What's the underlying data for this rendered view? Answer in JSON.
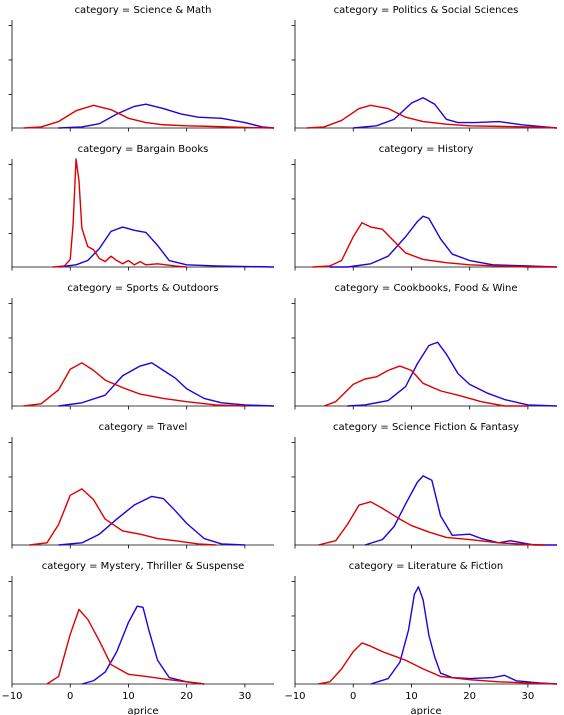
{
  "chart_data": {
    "type": "line",
    "xlabel": "aprice",
    "xlim": [
      -10,
      35
    ],
    "xticks": [
      -10,
      0,
      10,
      20,
      30
    ],
    "ylim": [
      0,
      1
    ],
    "colors": {
      "red": "#dd0000",
      "blue": "#2200dd"
    },
    "facet_prefix": "category = ",
    "facets": [
      {
        "category": "Science & Math",
        "red": [
          [
            -8,
            0
          ],
          [
            -5,
            0.01
          ],
          [
            -2,
            0.06
          ],
          [
            1,
            0.16
          ],
          [
            4,
            0.21
          ],
          [
            7,
            0.17
          ],
          [
            10,
            0.09
          ],
          [
            13,
            0.05
          ],
          [
            16,
            0.03
          ],
          [
            20,
            0.02
          ],
          [
            24,
            0.015
          ],
          [
            30,
            0.005
          ],
          [
            35,
            0
          ]
        ],
        "blue": [
          [
            -2,
            0
          ],
          [
            2,
            0.01
          ],
          [
            5,
            0.04
          ],
          [
            8,
            0.13
          ],
          [
            11,
            0.2
          ],
          [
            13,
            0.22
          ],
          [
            16,
            0.18
          ],
          [
            19,
            0.13
          ],
          [
            22,
            0.1
          ],
          [
            26,
            0.09
          ],
          [
            30,
            0.05
          ],
          [
            33,
            0.01
          ],
          [
            35,
            0
          ]
        ]
      },
      {
        "category": "Politics & Social Sciences",
        "red": [
          [
            -8,
            0
          ],
          [
            -5,
            0.01
          ],
          [
            -2,
            0.07
          ],
          [
            1,
            0.18
          ],
          [
            3,
            0.21
          ],
          [
            6,
            0.18
          ],
          [
            9,
            0.1
          ],
          [
            12,
            0.06
          ],
          [
            16,
            0.035
          ],
          [
            20,
            0.02
          ],
          [
            25,
            0.015
          ],
          [
            30,
            0.01
          ],
          [
            35,
            0
          ]
        ],
        "blue": [
          [
            0,
            0
          ],
          [
            4,
            0.02
          ],
          [
            7,
            0.08
          ],
          [
            10,
            0.23
          ],
          [
            12,
            0.28
          ],
          [
            14,
            0.22
          ],
          [
            16,
            0.08
          ],
          [
            18,
            0.05
          ],
          [
            21,
            0.05
          ],
          [
            25,
            0.06
          ],
          [
            29,
            0.03
          ],
          [
            33,
            0.01
          ],
          [
            35,
            0
          ]
        ]
      },
      {
        "category": "Bargain Books",
        "red": [
          [
            -3,
            0
          ],
          [
            -1,
            0.01
          ],
          [
            0,
            0.07
          ],
          [
            0.5,
            0.4
          ],
          [
            1,
            1.0
          ],
          [
            1.5,
            0.8
          ],
          [
            2,
            0.36
          ],
          [
            3,
            0.19
          ],
          [
            4,
            0.16
          ],
          [
            5,
            0.08
          ],
          [
            6,
            0.05
          ],
          [
            7,
            0.1
          ],
          [
            8,
            0.06
          ],
          [
            9,
            0.03
          ],
          [
            10,
            0.06
          ],
          [
            11,
            0.02
          ],
          [
            12,
            0.05
          ],
          [
            13,
            0.02
          ],
          [
            15,
            0.03
          ],
          [
            18,
            0.01
          ],
          [
            20,
            0
          ]
        ],
        "blue": [
          [
            -2,
            0
          ],
          [
            1,
            0.02
          ],
          [
            3,
            0.06
          ],
          [
            5,
            0.17
          ],
          [
            7,
            0.33
          ],
          [
            9,
            0.37
          ],
          [
            11,
            0.34
          ],
          [
            13,
            0.32
          ],
          [
            15,
            0.2
          ],
          [
            17,
            0.06
          ],
          [
            20,
            0.02
          ],
          [
            25,
            0.01
          ],
          [
            35,
            0
          ]
        ]
      },
      {
        "category": "History",
        "red": [
          [
            -7,
            0
          ],
          [
            -4,
            0.01
          ],
          [
            -2,
            0.06
          ],
          [
            0,
            0.28
          ],
          [
            1.5,
            0.41
          ],
          [
            3,
            0.37
          ],
          [
            5,
            0.35
          ],
          [
            7,
            0.24
          ],
          [
            9,
            0.13
          ],
          [
            12,
            0.07
          ],
          [
            16,
            0.04
          ],
          [
            20,
            0.02
          ],
          [
            25,
            0.01
          ],
          [
            30,
            0
          ],
          [
            35,
            0
          ]
        ],
        "blue": [
          [
            -4,
            0
          ],
          [
            -1,
            0
          ],
          [
            3,
            0.03
          ],
          [
            6,
            0.1
          ],
          [
            9,
            0.28
          ],
          [
            11,
            0.42
          ],
          [
            12,
            0.47
          ],
          [
            13,
            0.45
          ],
          [
            15,
            0.26
          ],
          [
            17,
            0.12
          ],
          [
            20,
            0.06
          ],
          [
            24,
            0.02
          ],
          [
            30,
            0.01
          ],
          [
            35,
            0
          ]
        ]
      },
      {
        "category": "Sports & Outdoors",
        "red": [
          [
            -8,
            0
          ],
          [
            -5,
            0.02
          ],
          [
            -2,
            0.15
          ],
          [
            0,
            0.34
          ],
          [
            2,
            0.4
          ],
          [
            4,
            0.33
          ],
          [
            6,
            0.24
          ],
          [
            9,
            0.17
          ],
          [
            12,
            0.11
          ],
          [
            16,
            0.07
          ],
          [
            20,
            0.04
          ],
          [
            25,
            0.01
          ],
          [
            30,
            0
          ]
        ],
        "blue": [
          [
            -2,
            0
          ],
          [
            2,
            0.03
          ],
          [
            6,
            0.1
          ],
          [
            9,
            0.28
          ],
          [
            12,
            0.37
          ],
          [
            14,
            0.4
          ],
          [
            16,
            0.33
          ],
          [
            18,
            0.26
          ],
          [
            20,
            0.16
          ],
          [
            23,
            0.07
          ],
          [
            26,
            0.03
          ],
          [
            30,
            0.01
          ],
          [
            35,
            0
          ]
        ]
      },
      {
        "category": "Cookbooks, Food & Wine",
        "red": [
          [
            -5,
            0
          ],
          [
            -3,
            0.04
          ],
          [
            0,
            0.2
          ],
          [
            2,
            0.25
          ],
          [
            4,
            0.27
          ],
          [
            6,
            0.33
          ],
          [
            8,
            0.37
          ],
          [
            10,
            0.33
          ],
          [
            12,
            0.21
          ],
          [
            15,
            0.14
          ],
          [
            18,
            0.1
          ],
          [
            22,
            0.04
          ],
          [
            26,
            0
          ],
          [
            30,
            0
          ]
        ],
        "blue": [
          [
            -1,
            0
          ],
          [
            2,
            0.01
          ],
          [
            6,
            0.05
          ],
          [
            9,
            0.18
          ],
          [
            11,
            0.39
          ],
          [
            13,
            0.56
          ],
          [
            14.5,
            0.59
          ],
          [
            16,
            0.48
          ],
          [
            18,
            0.3
          ],
          [
            20,
            0.2
          ],
          [
            23,
            0.12
          ],
          [
            26,
            0.06
          ],
          [
            30,
            0.01
          ],
          [
            35,
            0
          ]
        ]
      },
      {
        "category": "Travel",
        "red": [
          [
            -7,
            0
          ],
          [
            -4,
            0.02
          ],
          [
            -2,
            0.19
          ],
          [
            0,
            0.46
          ],
          [
            2,
            0.52
          ],
          [
            4,
            0.42
          ],
          [
            6,
            0.24
          ],
          [
            9,
            0.13
          ],
          [
            12,
            0.1
          ],
          [
            15,
            0.06
          ],
          [
            18,
            0.04
          ],
          [
            22,
            0.01
          ],
          [
            25,
            0
          ]
        ],
        "blue": [
          [
            -2,
            0
          ],
          [
            2,
            0.02
          ],
          [
            5,
            0.1
          ],
          [
            8,
            0.24
          ],
          [
            11,
            0.37
          ],
          [
            14,
            0.45
          ],
          [
            16,
            0.43
          ],
          [
            18,
            0.32
          ],
          [
            20,
            0.2
          ],
          [
            23,
            0.06
          ],
          [
            26,
            0.01
          ],
          [
            30,
            0
          ]
        ]
      },
      {
        "category": "Science Fiction & Fantasy",
        "red": [
          [
            -6,
            0
          ],
          [
            -3,
            0.04
          ],
          [
            -1,
            0.19
          ],
          [
            1,
            0.37
          ],
          [
            3,
            0.4
          ],
          [
            5,
            0.34
          ],
          [
            8,
            0.24
          ],
          [
            10,
            0.18
          ],
          [
            13,
            0.12
          ],
          [
            16,
            0.07
          ],
          [
            20,
            0.05
          ],
          [
            25,
            0.02
          ],
          [
            30,
            0.005
          ],
          [
            33,
            0
          ]
        ],
        "blue": [
          [
            2,
            0
          ],
          [
            5,
            0.05
          ],
          [
            7,
            0.17
          ],
          [
            9,
            0.38
          ],
          [
            11,
            0.58
          ],
          [
            12,
            0.64
          ],
          [
            13.5,
            0.6
          ],
          [
            15,
            0.27
          ],
          [
            17,
            0.09
          ],
          [
            20,
            0.1
          ],
          [
            22,
            0.06
          ],
          [
            25,
            0.02
          ],
          [
            27,
            0.04
          ],
          [
            29,
            0.02
          ],
          [
            31,
            0
          ],
          [
            35,
            0
          ]
        ]
      },
      {
        "category": "Mystery, Thriller & Suspense",
        "red": [
          [
            -4,
            0
          ],
          [
            -2,
            0.07
          ],
          [
            0,
            0.46
          ],
          [
            1.5,
            0.69
          ],
          [
            3,
            0.6
          ],
          [
            5,
            0.4
          ],
          [
            7,
            0.18
          ],
          [
            10,
            0.09
          ],
          [
            13,
            0.07
          ],
          [
            17,
            0.04
          ],
          [
            20,
            0.02
          ],
          [
            23,
            0
          ]
        ],
        "blue": [
          [
            2,
            0
          ],
          [
            4,
            0.03
          ],
          [
            6,
            0.11
          ],
          [
            8,
            0.3
          ],
          [
            10,
            0.57
          ],
          [
            11.5,
            0.72
          ],
          [
            12.5,
            0.71
          ],
          [
            13.5,
            0.5
          ],
          [
            15,
            0.22
          ],
          [
            17,
            0.06
          ],
          [
            20,
            0.02
          ],
          [
            23,
            0
          ]
        ]
      },
      {
        "category": "Literature & Fiction",
        "red": [
          [
            -6,
            0
          ],
          [
            -4,
            0.02
          ],
          [
            -2,
            0.14
          ],
          [
            0,
            0.3
          ],
          [
            1.5,
            0.38
          ],
          [
            3,
            0.35
          ],
          [
            5,
            0.3
          ],
          [
            7,
            0.26
          ],
          [
            9,
            0.22
          ],
          [
            12,
            0.14
          ],
          [
            15,
            0.07
          ],
          [
            20,
            0.04
          ],
          [
            25,
            0.02
          ],
          [
            30,
            0.01
          ],
          [
            35,
            0
          ]
        ],
        "blue": [
          [
            3,
            0
          ],
          [
            6,
            0.05
          ],
          [
            8,
            0.2
          ],
          [
            9.5,
            0.5
          ],
          [
            10.5,
            0.83
          ],
          [
            11.2,
            0.9
          ],
          [
            12,
            0.78
          ],
          [
            13,
            0.45
          ],
          [
            14,
            0.25
          ],
          [
            15,
            0.1
          ],
          [
            17,
            0.06
          ],
          [
            20,
            0.05
          ],
          [
            24,
            0.06
          ],
          [
            26,
            0.08
          ],
          [
            28,
            0.03
          ],
          [
            32,
            0.01
          ],
          [
            35,
            0
          ]
        ]
      }
    ]
  }
}
